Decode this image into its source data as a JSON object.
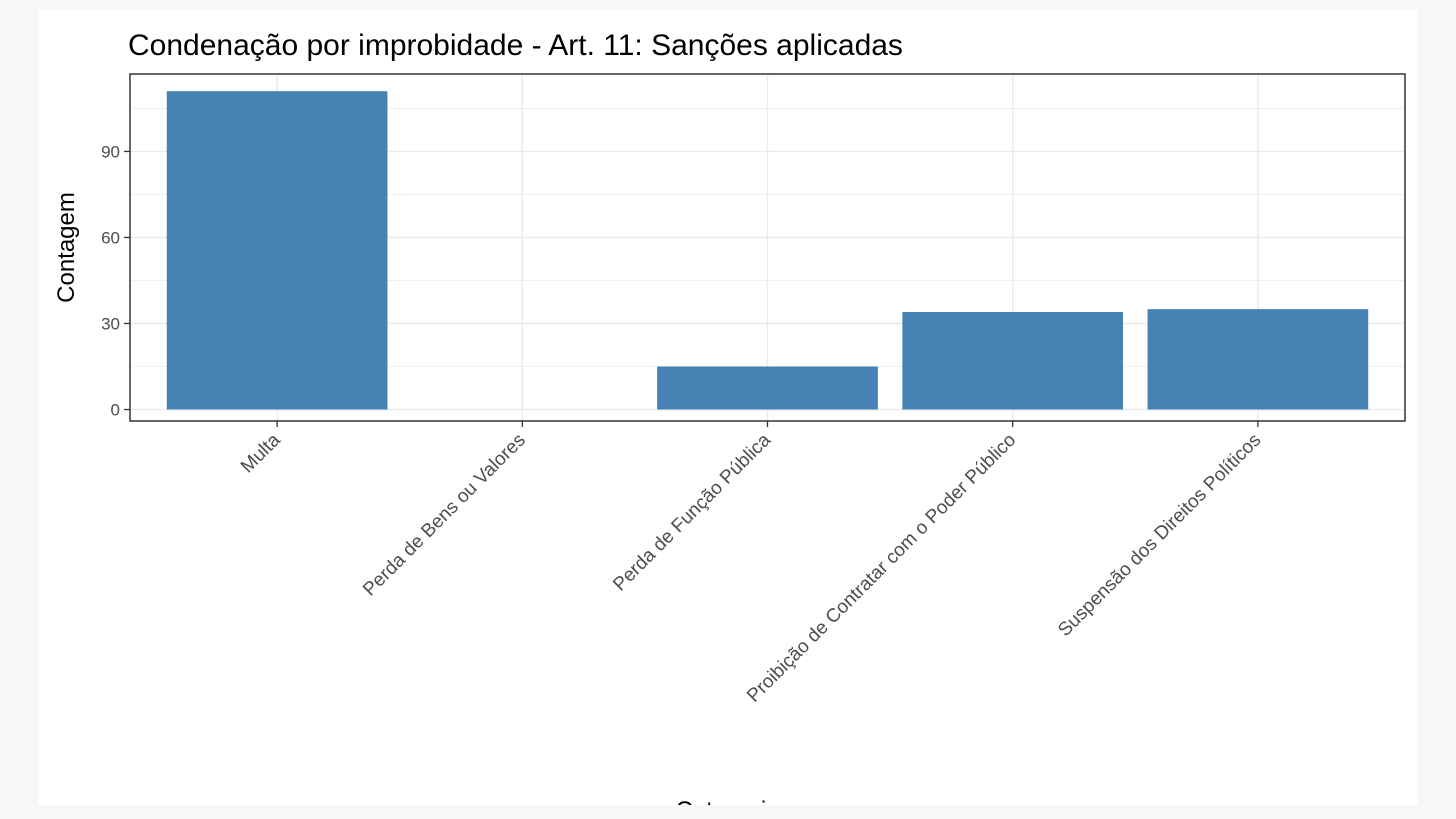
{
  "chart_data": {
    "type": "bar",
    "title": "Condenação por improbidade - Art. 11: Sanções aplicadas",
    "xlabel": "Categoria",
    "ylabel": "Contagem",
    "categories": [
      "Multa",
      "Perda de Bens ou Valores",
      "Perda de Função Pública",
      "Proibição de Contratar com o Poder Público",
      "Suspensão dos Direitos Políticos"
    ],
    "values": [
      111,
      0,
      15,
      34,
      35
    ],
    "ylim": [
      -4,
      117
    ],
    "yticks": [
      0,
      30,
      60,
      90
    ],
    "grid": true,
    "legend": "none",
    "colors": {
      "bar": "#4682b4",
      "grid": "#ebebeb",
      "panel_border": "#333333",
      "text": "#4d4d4d"
    }
  }
}
